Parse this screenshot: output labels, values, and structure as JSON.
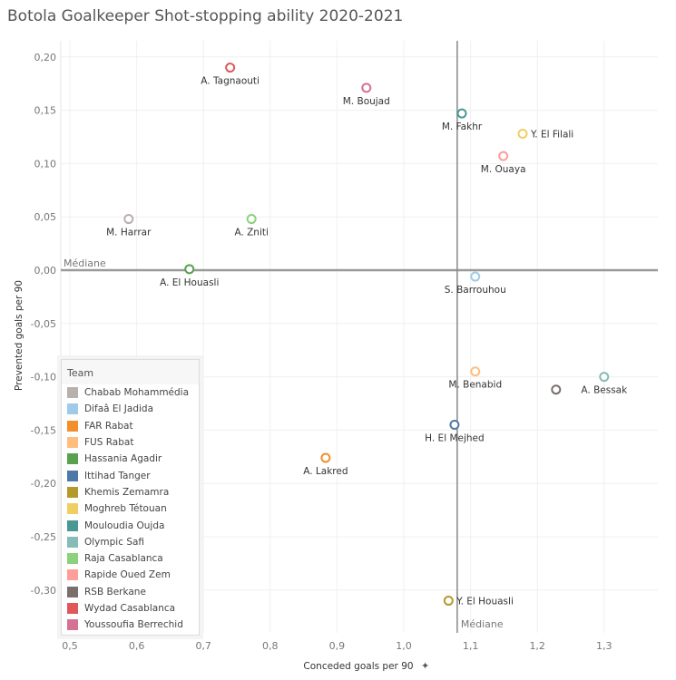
{
  "chart_data": {
    "type": "scatter",
    "title": "Botola Goalkeeper Shot-stopping ability 2020-2021",
    "xlabel": "Conceded goals per 90",
    "ylabel": "Prevented goals per 90",
    "xlim": [
      0.48,
      1.38
    ],
    "ylim": [
      -0.34,
      0.22
    ],
    "xticks": [
      "0,5",
      "0,6",
      "0,7",
      "0,8",
      "0,9",
      "1,0",
      "1,1",
      "1,2",
      "1,3"
    ],
    "xtick_values": [
      0.5,
      0.6,
      0.7,
      0.8,
      0.9,
      1.0,
      1.1,
      1.2,
      1.3
    ],
    "yticks": [
      "0,20",
      "0,15",
      "0,10",
      "0,05",
      "0,00",
      "-0,05",
      "-0,10",
      "-0,15",
      "-0,20",
      "-0,25",
      "-0,30"
    ],
    "ytick_values": [
      0.2,
      0.15,
      0.1,
      0.05,
      0,
      -0.05,
      -0.1,
      -0.15,
      -0.2,
      -0.25,
      -0.3
    ],
    "grid": true,
    "median_x": 1.08,
    "median_y": 0.0,
    "median_label": "Médiane",
    "legend_title": "Team",
    "legend_position": "bottom-left",
    "teams": [
      {
        "name": "Chabab Mohammédia",
        "color": "#b9b0ac"
      },
      {
        "name": "Difaâ El Jadida",
        "color": "#a0cbe8"
      },
      {
        "name": "FAR Rabat",
        "color": "#f28e2b"
      },
      {
        "name": "FUS Rabat",
        "color": "#ffbe7d"
      },
      {
        "name": "Hassania Agadir",
        "color": "#59a14f"
      },
      {
        "name": "Ittihad Tanger",
        "color": "#4e79a7"
      },
      {
        "name": "Khemis Zemamra",
        "color": "#b6992d"
      },
      {
        "name": "Moghreb Tétouan",
        "color": "#f1ce63"
      },
      {
        "name": "Mouloudia Oujda",
        "color": "#499894"
      },
      {
        "name": "Olympic Safi",
        "color": "#86bcb6"
      },
      {
        "name": "Raja Casablanca",
        "color": "#8cd17d"
      },
      {
        "name": "Rapide Oued Zem",
        "color": "#ff9d9a"
      },
      {
        "name": "RSB Berkane",
        "color": "#79706e"
      },
      {
        "name": "Wydad Casablanca",
        "color": "#e15759"
      },
      {
        "name": "Youssoufia Berrechid",
        "color": "#d37295"
      }
    ],
    "points": [
      {
        "name": "A. Tagnaouti",
        "team": 13,
        "x": 0.74,
        "y": 0.19,
        "pos": "below"
      },
      {
        "name": "M. Boujad",
        "team": 14,
        "x": 0.944,
        "y": 0.171,
        "pos": "below"
      },
      {
        "name": "M. Fakhr",
        "team": 8,
        "x": 1.087,
        "y": 0.147,
        "pos": "below"
      },
      {
        "name": "Y. El Filali",
        "team": 7,
        "x": 1.178,
        "y": 0.128,
        "pos": "right"
      },
      {
        "name": "M. Ouaya",
        "team": 11,
        "x": 1.149,
        "y": 0.107,
        "pos": "below"
      },
      {
        "name": "M. Harrar",
        "team": 0,
        "x": 0.588,
        "y": 0.048,
        "pos": "below"
      },
      {
        "name": "A. Zniti",
        "team": 10,
        "x": 0.772,
        "y": 0.048,
        "pos": "below"
      },
      {
        "name": "A. El Houasli",
        "team": 4,
        "x": 0.679,
        "y": 0.001,
        "pos": "below"
      },
      {
        "name": "S. Barrouhou",
        "team": 1,
        "x": 1.107,
        "y": -0.006,
        "pos": "below"
      },
      {
        "name": "M. Benabid",
        "team": 3,
        "x": 1.107,
        "y": -0.095,
        "pos": "below"
      },
      {
        "name": "A. Bessak",
        "team": 9,
        "x": 1.3,
        "y": -0.1,
        "pos": "below"
      },
      {
        "name": "",
        "team": 12,
        "x": 1.228,
        "y": -0.112,
        "pos": "none"
      },
      {
        "name": "H. El Mejhed",
        "team": 5,
        "x": 1.076,
        "y": -0.145,
        "pos": "below"
      },
      {
        "name": "A. Lakred",
        "team": 2,
        "x": 0.883,
        "y": -0.176,
        "pos": "below"
      },
      {
        "name": "Y. El Houasli",
        "team": 6,
        "x": 1.067,
        "y": -0.31,
        "pos": "right"
      }
    ]
  }
}
